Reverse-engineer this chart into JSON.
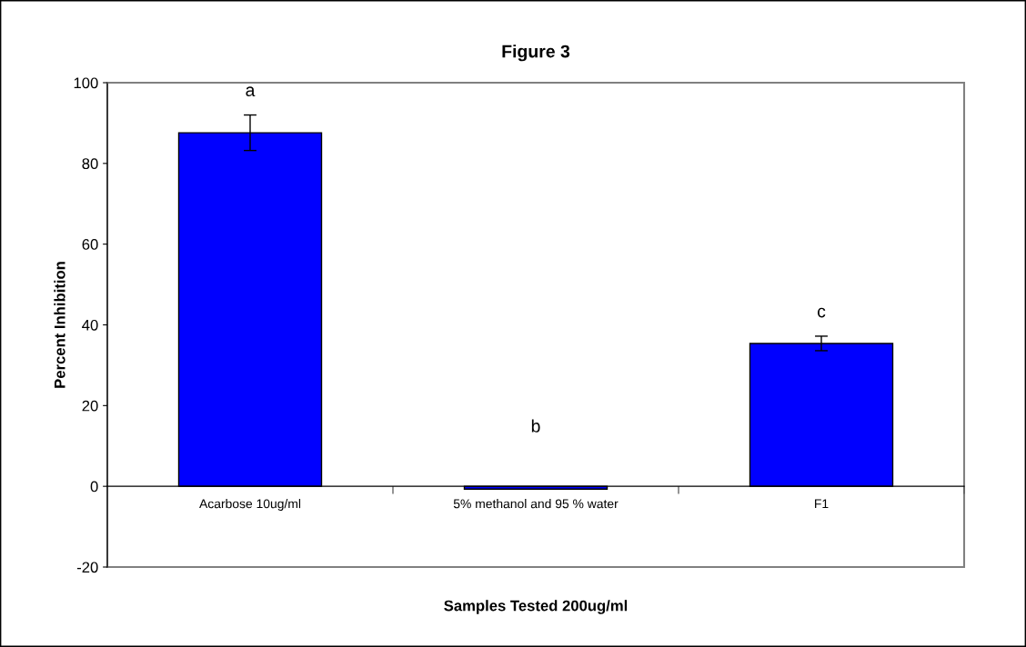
{
  "chart_data": {
    "type": "bar",
    "title": "Figure 3",
    "xlabel": "Samples Tested 200ug/ml",
    "ylabel": "Percent Inhibition",
    "categories": [
      "Acarbose 10ug/ml",
      "5% methanol and 95 % water",
      "F1"
    ],
    "values": [
      87.6,
      -0.7,
      35.4
    ],
    "errors": [
      4.4,
      null,
      1.8
    ],
    "color": "#0000ff",
    "ylim": [
      -20,
      100
    ],
    "yticks": [
      -20,
      0,
      20,
      40,
      60,
      80,
      100
    ],
    "grid": false,
    "legend": false,
    "annotations": [
      "a",
      "b",
      "c"
    ]
  }
}
